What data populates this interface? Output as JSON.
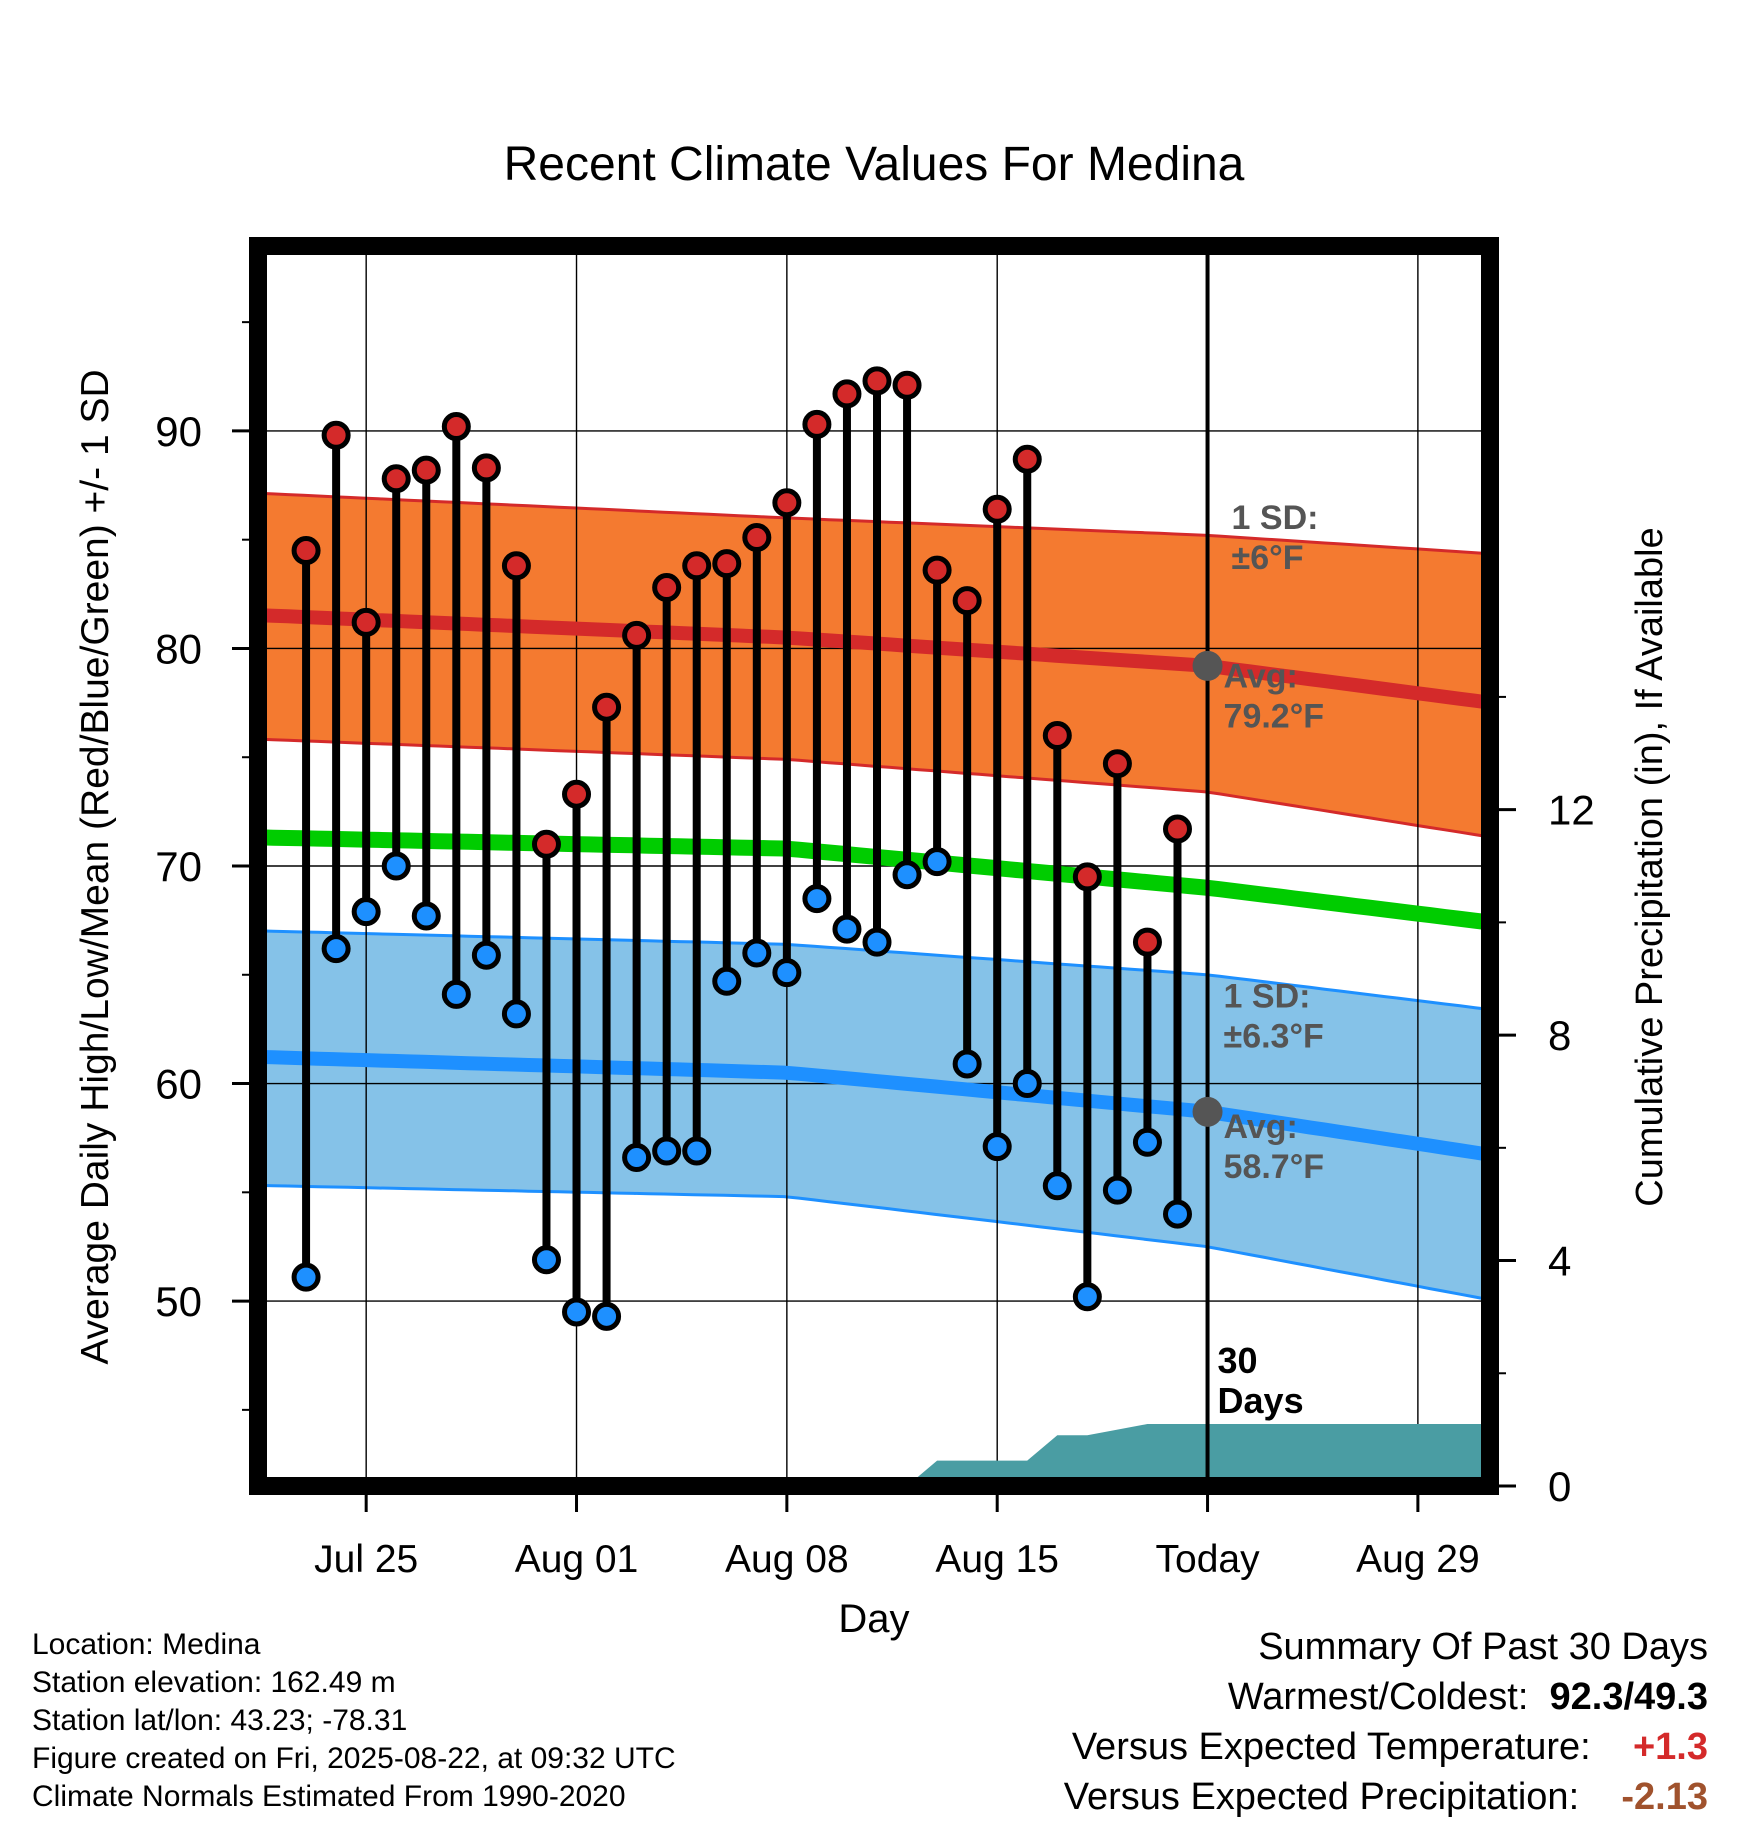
{
  "colors": {
    "high": "#d42a2a",
    "low": "#1e90ff",
    "mean_normal": "#00cc00",
    "high_band": "#f47a30",
    "low_band": "#85c2e8",
    "precip_area": "#4a9da3",
    "annotation_gray": "#555555",
    "temp_delta": "#d42a2a",
    "precip_delta": "#a0522d"
  },
  "chart_data": {
    "type": "line",
    "title": "Recent Climate Values For Medina",
    "xlabel": "Day",
    "ylabel": "Average Daily High/Low/Mean (Red/Blue/Green) +/- 1 SD",
    "ylabel_right": "Cumulative Precipitation (in), If Available",
    "x_tick_labels": [
      "Jul 25",
      "Aug 01",
      "Aug 08",
      "Aug 15",
      "Today",
      "Aug 29"
    ],
    "y_ticks": [
      50,
      60,
      70,
      80,
      90
    ],
    "y2_ticks": [
      0,
      4,
      8,
      12
    ],
    "ylim": [
      41.5,
      98.5
    ],
    "y2lim": [
      0,
      22
    ],
    "xlim_days_since_jul22": [
      -0.6,
      40.4
    ],
    "today_label_date": "2025-08-22",
    "grid": true,
    "observed_days": [
      "Jul 23",
      "Jul 24",
      "Jul 25",
      "Jul 26",
      "Jul 27",
      "Jul 28",
      "Jul 29",
      "Jul 30",
      "Jul 31",
      "Aug 01",
      "Aug 02",
      "Aug 03",
      "Aug 04",
      "Aug 05",
      "Aug 06",
      "Aug 07",
      "Aug 08",
      "Aug 09",
      "Aug 10",
      "Aug 11",
      "Aug 12",
      "Aug 13",
      "Aug 14",
      "Aug 15",
      "Aug 16",
      "Aug 17",
      "Aug 18",
      "Aug 19",
      "Aug 20",
      "Aug 21"
    ],
    "series": [
      {
        "name": "High",
        "values": [
          84.5,
          89.8,
          81.2,
          87.8,
          88.2,
          90.2,
          88.3,
          83.8,
          71.0,
          73.3,
          77.3,
          80.6,
          82.8,
          83.8,
          83.9,
          85.1,
          86.7,
          90.3,
          91.7,
          92.3,
          92.1,
          83.6,
          82.2,
          86.4,
          88.7,
          76.0,
          69.5,
          74.7,
          66.5,
          71.7
        ]
      },
      {
        "name": "Low",
        "values": [
          51.1,
          66.2,
          67.9,
          70.0,
          67.7,
          64.1,
          65.9,
          63.2,
          51.9,
          49.5,
          49.3,
          56.6,
          56.9,
          56.9,
          64.7,
          66.0,
          65.1,
          68.5,
          67.1,
          66.5,
          69.6,
          70.2,
          60.9,
          57.1,
          60.0,
          55.3,
          50.2,
          55.1,
          57.3,
          54.0
        ]
      }
    ],
    "normals": {
      "days": [
        "Jul 22",
        "Aug 08",
        "Aug 22",
        "Sep 01"
      ],
      "high_avg": [
        81.5,
        80.5,
        79.2,
        77.4
      ],
      "high_sd_upper": [
        87.1,
        86.0,
        85.2,
        84.3
      ],
      "high_sd_lower": [
        75.8,
        74.9,
        73.4,
        71.2
      ],
      "mean_avg": [
        71.3,
        70.8,
        69.0,
        67.3
      ],
      "low_avg": [
        61.2,
        60.5,
        58.7,
        56.6
      ],
      "low_sd_upper": [
        67.0,
        66.4,
        65.0,
        63.3
      ],
      "low_sd_lower": [
        55.3,
        54.8,
        52.5,
        49.9
      ]
    },
    "precip_cumulative": {
      "days": [
        "Aug 12",
        "Aug 13",
        "Aug 16",
        "Aug 17",
        "Aug 18",
        "Aug 19",
        "Aug 20",
        "Aug 21",
        "Sep 01"
      ],
      "values": [
        0.0,
        0.45,
        0.45,
        0.9,
        0.9,
        1.0,
        1.1,
        1.1,
        1.1
      ]
    },
    "annotations": {
      "high_sd": [
        "1 SD:",
        "±6°F"
      ],
      "high_avg": [
        "Avg:",
        "79.2°F"
      ],
      "low_sd": [
        "1 SD:",
        "±6.3°F"
      ],
      "low_avg": [
        "Avg:",
        "58.7°F"
      ],
      "days_label": [
        "30",
        "Days"
      ]
    }
  },
  "info": {
    "location": "Location: Medina",
    "elevation": "Station elevation: 162.49 m",
    "latlon": "Station lat/lon: 43.23; -78.31",
    "created": "Figure created on Fri, 2025-08-22, at 09:32 UTC",
    "normals": "Climate Normals Estimated From 1990-2020"
  },
  "summary": {
    "title": "Summary Of Past 30 Days",
    "warmest_label": "Warmest/Coldest:",
    "warmest_value": "92.3/49.3",
    "temp_label": "Versus Expected Temperature:",
    "temp_value": "+1.3",
    "precip_label": "Versus Expected Precipitation:",
    "precip_value": "-2.13"
  }
}
